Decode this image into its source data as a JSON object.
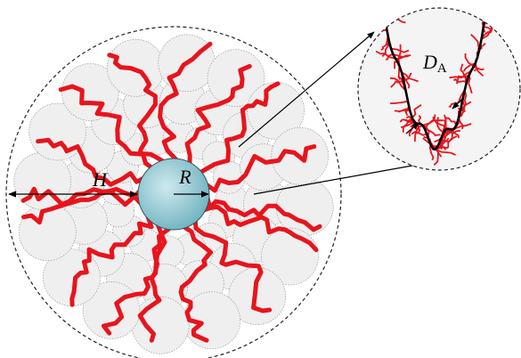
{
  "main": {
    "height_label": "H",
    "radius_label": "R"
  },
  "inset": {
    "label": {
      "symbol": "D",
      "subscript": "A"
    }
  }
}
